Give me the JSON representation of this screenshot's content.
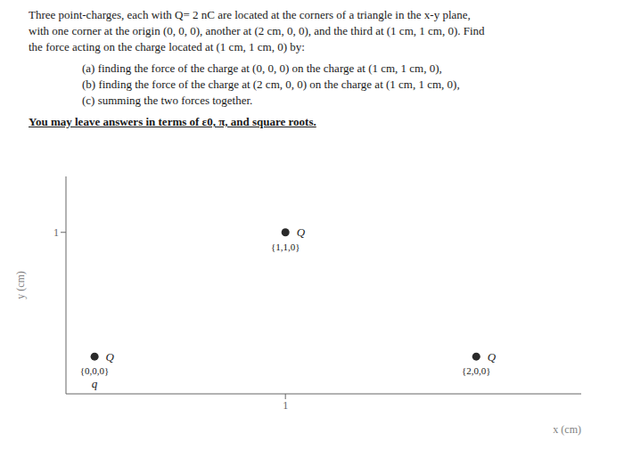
{
  "chart_data": {
    "type": "scatter",
    "title": [
      "Three point-charges, each with Q= 2 nC are located at the corners of a triangle in the x-y plane,",
      "with one corner at the origin (0, 0, 0), another at (2 cm, 0, 0), and the third at (1 cm, 1 cm, 0). Find",
      "the force acting on the charge located at (1 cm, 1 cm, 0) by:"
    ],
    "subtitle": [
      "(a) finding the force of the charge at (0, 0, 0) on the charge at (1 cm, 1 cm, 0),",
      "(b) finding the force of the charge at (2 cm, 0, 0) on the charge at (1 cm, 1 cm, 0),",
      "(c) summing the two forces together."
    ],
    "annotations": [
      {
        "text": "You may leave answers in terms of ε0, π, and square roots."
      },
      {
        "text": "q",
        "x": 0,
        "y": 0
      }
    ],
    "x": [
      0,
      1,
      2
    ],
    "values": [
      0,
      1,
      0
    ],
    "point_labels": [
      "Q",
      "Q",
      "Q"
    ],
    "coord_labels": [
      "{0,0,0}",
      "{1,1,0}",
      "{2,0,0}"
    ],
    "color": "#2a2a2a",
    "x_label": "x (cm)",
    "y_label": "y (cm)",
    "xlim": [
      -0.15,
      2.55
    ],
    "ylim": [
      -0.3,
      1.45
    ],
    "xticks": [
      1
    ],
    "yticks": [
      1
    ],
    "grid": false
  }
}
